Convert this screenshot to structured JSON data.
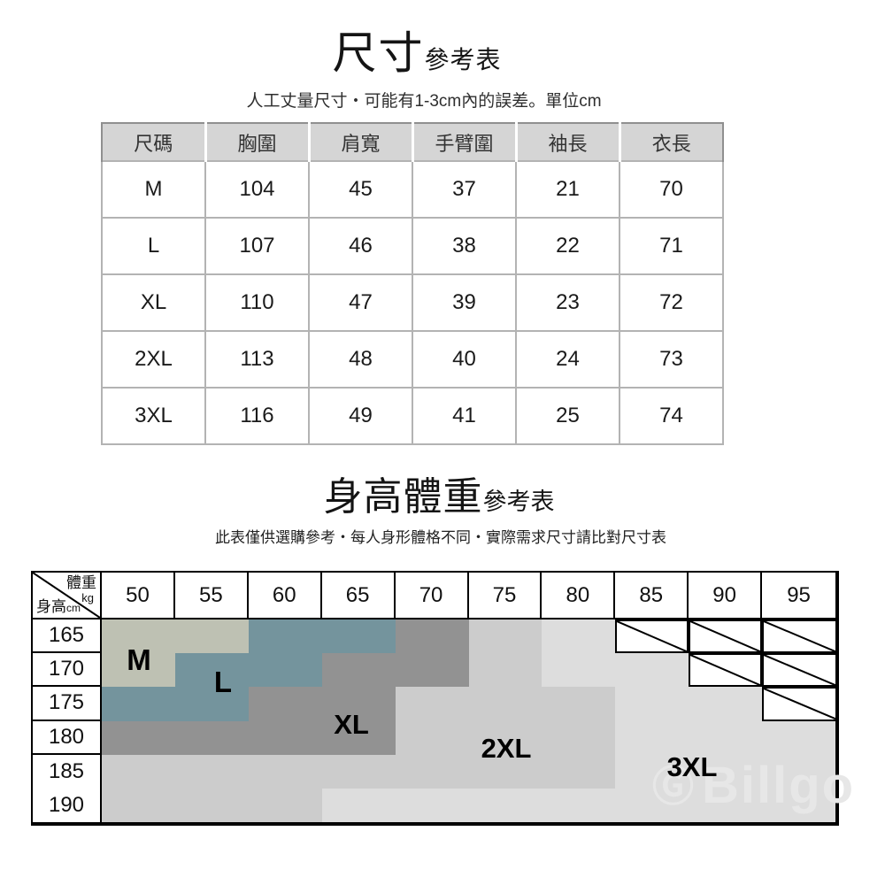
{
  "size_section": {
    "title_main": "尺寸",
    "title_suffix": "參考表",
    "subtitle": "人工丈量尺寸・可能有1-3cm內的誤差。單位cm",
    "table": {
      "columns": [
        "尺碼",
        "胸圍",
        "肩寬",
        "手臂圍",
        "袖長",
        "衣長"
      ],
      "rows": [
        [
          "M",
          "104",
          "45",
          "37",
          "21",
          "70"
        ],
        [
          "L",
          "107",
          "46",
          "38",
          "22",
          "71"
        ],
        [
          "XL",
          "110",
          "47",
          "39",
          "23",
          "72"
        ],
        [
          "2XL",
          "113",
          "48",
          "40",
          "24",
          "73"
        ],
        [
          "3XL",
          "116",
          "49",
          "41",
          "25",
          "74"
        ]
      ]
    }
  },
  "fit_section": {
    "title_main": "身高體重",
    "title_suffix": "參考表",
    "subtitle": "此表僅供選購參考・每人身形體格不同・實際需求尺寸請比對尺寸表",
    "matrix": {
      "corner": {
        "top_label": "體重",
        "top_unit": "kg",
        "side_label": "身高",
        "side_unit": "cm"
      },
      "weights": [
        "50",
        "55",
        "60",
        "65",
        "70",
        "75",
        "80",
        "85",
        "90",
        "95"
      ],
      "heights": [
        "165",
        "170",
        "175",
        "180",
        "185",
        "190"
      ],
      "cells": [
        [
          "M",
          "M",
          "L",
          "L",
          "XL",
          "2XL",
          "3XL",
          "NA",
          "NA",
          "NA"
        ],
        [
          "M",
          "L",
          "L",
          "XL",
          "XL",
          "2XL",
          "3XL",
          "3XL",
          "NA",
          "NA"
        ],
        [
          "L",
          "L",
          "XL",
          "XL",
          "2XL",
          "2XL",
          "2XL",
          "3XL",
          "3XL",
          "NA"
        ],
        [
          "XL",
          "XL",
          "XL",
          "XL",
          "2XL",
          "2XL",
          "2XL",
          "3XL",
          "3XL",
          "3XL"
        ],
        [
          "2XL",
          "2XL",
          "2XL",
          "2XL",
          "2XL",
          "2XL",
          "2XL",
          "3XL",
          "3XL",
          "3XL"
        ],
        [
          "2XL",
          "2XL",
          "2XL",
          "3XL",
          "3XL",
          "3XL",
          "3XL",
          "3XL",
          "3XL",
          "3XL"
        ]
      ],
      "region_colors": {
        "M": "#bec1b3",
        "L": "#74949d",
        "XL": "#929292",
        "2XL": "#cccccc",
        "3XL": "#dddddd",
        "NA": "#ffffff"
      },
      "labels": [
        {
          "text": "M"
        },
        {
          "text": "L"
        },
        {
          "text": "XL"
        },
        {
          "text": "2XL"
        },
        {
          "text": "3XL"
        }
      ]
    },
    "watermark": {
      "logo": "Ⓖ",
      "text": "Billgo"
    }
  }
}
